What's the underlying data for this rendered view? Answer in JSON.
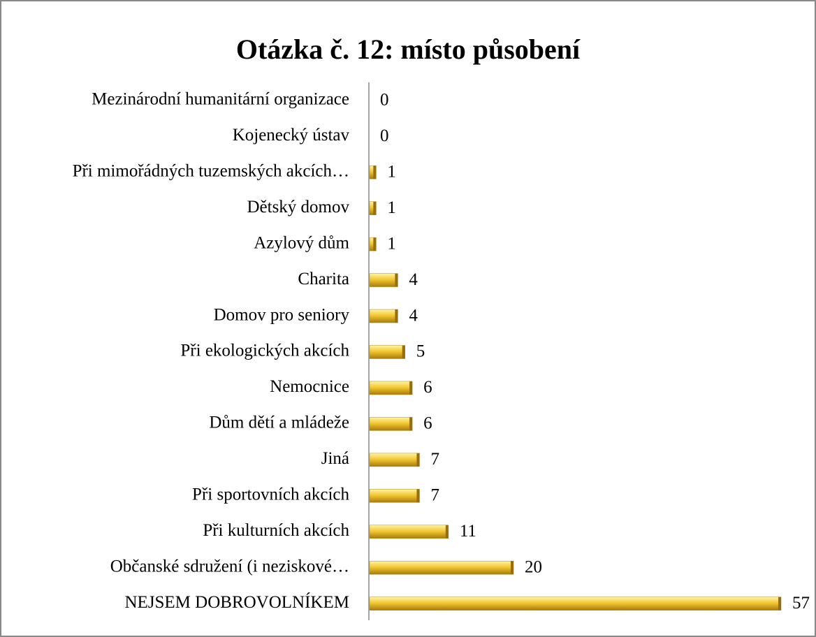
{
  "chart_data": {
    "type": "bar",
    "orientation": "horizontal",
    "title": "Otázka č. 12: místo působení",
    "categories": [
      "Mezinárodní humanitární organizace",
      "Kojenecký ústav",
      "Při mimořádných tuzemských akcích…",
      "Dětský domov",
      "Azylový dům",
      "Charita",
      "Domov pro seniory",
      "Při ekologických akcích",
      "Nemocnice",
      "Dům dětí a mládeže",
      "Jiná",
      "Při sportovních akcích",
      "Při kulturních akcích",
      "Občanské sdružení (i neziskové…",
      "NEJSEM DOBROVOLNÍKEM"
    ],
    "values": [
      0,
      0,
      1,
      1,
      1,
      4,
      4,
      5,
      6,
      6,
      7,
      7,
      11,
      20,
      57
    ],
    "color": "#e8b820"
  }
}
